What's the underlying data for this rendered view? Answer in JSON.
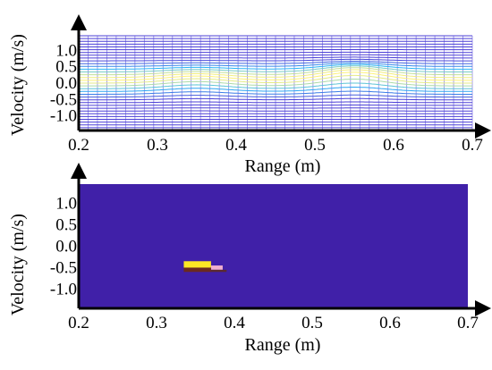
{
  "figure": {
    "panels": [
      "top-waterfall",
      "bottom-heatmap"
    ]
  },
  "chart_data": [
    {
      "type": "line",
      "subtype": "waterfall",
      "title": "",
      "xlabel": "Range (m)",
      "ylabel": "Velocity (m/s)",
      "xlim": [
        0.2,
        0.7
      ],
      "ylim": [
        -1.45,
        1.45
      ],
      "x_ticks": [
        "0.2",
        "0.3",
        "0.4",
        "0.5",
        "0.6",
        "0.7"
      ],
      "y_ticks": [
        "1.0",
        "0.5",
        "0.0",
        "-0.5",
        "-1.0"
      ],
      "x_tick_values": [
        0.2,
        0.3,
        0.4,
        0.5,
        0.6,
        0.7
      ],
      "y_tick_values": [
        1.0,
        0.5,
        0.0,
        -0.5,
        -1.0
      ],
      "grid": true,
      "velocity_bins": 34,
      "range_bins": 42,
      "peaks": [
        {
          "range": 0.35,
          "velocity": 0.0,
          "relative_amplitude": 0.55
        },
        {
          "range": 0.55,
          "velocity": 0.1,
          "relative_amplitude": 1.0
        }
      ],
      "colors": {
        "low": "#4b3fd6",
        "mid": "#29b6f6",
        "high": "#fff176"
      }
    },
    {
      "type": "heatmap",
      "title": "",
      "xlabel": "Range (m)",
      "ylabel": "Velocity (m/s)",
      "xlim": [
        0.2,
        0.7
      ],
      "ylim": [
        -1.45,
        1.45
      ],
      "x_ticks": [
        "0.2",
        "0.3",
        "0.4",
        "0.5",
        "0.6",
        "0.7"
      ],
      "y_ticks": [
        "1.0",
        "0.5",
        "0.0",
        "-0.5",
        "-1.0"
      ],
      "x_tick_values": [
        0.2,
        0.3,
        0.4,
        0.5,
        0.6,
        0.7
      ],
      "y_tick_values": [
        1.0,
        0.5,
        0.0,
        -0.5,
        -1.0
      ],
      "background_color": "#4020a8",
      "cells": [
        {
          "range": [
            0.335,
            0.37
          ],
          "velocity": [
            -0.35,
            -0.5
          ],
          "color": "#fde725"
        },
        {
          "range": [
            0.37,
            0.385
          ],
          "velocity": [
            -0.45,
            -0.55
          ],
          "color": "#f0b0d0"
        },
        {
          "range": [
            0.335,
            0.37
          ],
          "velocity": [
            -0.5,
            -0.6
          ],
          "color": "#6b2a20"
        },
        {
          "range": [
            0.37,
            0.39
          ],
          "velocity": [
            -0.55,
            -0.6
          ],
          "color": "#5a2a30"
        }
      ]
    }
  ]
}
